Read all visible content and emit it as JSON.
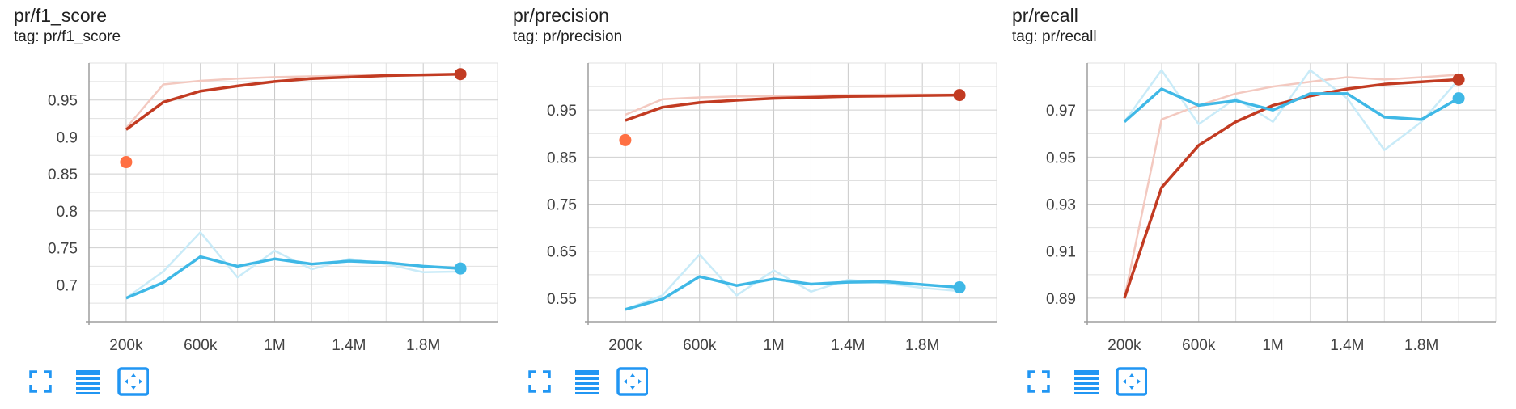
{
  "cards": [
    {
      "title": "pr/f1_score",
      "tag": "tag: pr/f1_score",
      "toolbar": {
        "icons": [
          "fullscreen-icon",
          "data-table-icon",
          "fit-domain-icon"
        ]
      },
      "chart_data": {
        "type": "line",
        "xlim": [
          0,
          2200000
        ],
        "ylim": [
          0.65,
          1.0
        ],
        "x_ticks": [
          200000,
          600000,
          1000000,
          1400000,
          1800000
        ],
        "x_tick_labels": [
          "200k",
          "600k",
          "1M",
          "1.4M",
          "1.8M"
        ],
        "y_ticks": [
          0.7,
          0.75,
          0.8,
          0.85,
          0.9,
          0.95
        ],
        "y_tick_labels": [
          "0.7",
          "0.75",
          "0.8",
          "0.85",
          "0.9",
          "0.95"
        ],
        "grid": true,
        "series": [
          {
            "color": "#c23b22",
            "raw_color": "#f3c9c0",
            "x": [
              200000,
              400000,
              600000,
              800000,
              1000000,
              1200000,
              1400000,
              1600000,
              1800000,
              2000000
            ],
            "raw": [
              0.912,
              0.971,
              0.976,
              0.979,
              0.981,
              0.982,
              0.983,
              0.984,
              0.984,
              0.985
            ],
            "smoothed": [
              0.91,
              0.947,
              0.962,
              0.969,
              0.975,
              0.979,
              0.981,
              0.983,
              0.984,
              0.985
            ]
          },
          {
            "color": "#3fb8e6",
            "raw_color": "#c9ebf8",
            "x": [
              200000,
              400000,
              600000,
              800000,
              1000000,
              1200000,
              1400000,
              1600000,
              1800000,
              2000000
            ],
            "raw": [
              0.682,
              0.718,
              0.771,
              0.71,
              0.746,
              0.721,
              0.735,
              0.728,
              0.717,
              0.718
            ],
            "smoothed": [
              0.682,
              0.703,
              0.738,
              0.725,
              0.735,
              0.728,
              0.732,
              0.73,
              0.725,
              0.722
            ]
          }
        ],
        "markers": [
          {
            "x": 200000,
            "y": 0.866,
            "color": "#ff7043"
          },
          {
            "x": 2000000,
            "y": 0.985,
            "color": "#c23b22"
          },
          {
            "x": 2000000,
            "y": 0.722,
            "color": "#3fb8e6"
          }
        ]
      }
    },
    {
      "title": "pr/precision",
      "tag": "tag: pr/precision",
      "toolbar": {
        "icons": [
          "fullscreen-icon",
          "data-table-icon",
          "fit-domain-icon"
        ]
      },
      "chart_data": {
        "type": "line",
        "xlim": [
          0,
          2200000
        ],
        "ylim": [
          0.5,
          1.05
        ],
        "x_ticks": [
          200000,
          600000,
          1000000,
          1400000,
          1800000
        ],
        "x_tick_labels": [
          "200k",
          "600k",
          "1M",
          "1.4M",
          "1.8M"
        ],
        "y_ticks": [
          0.55,
          0.65,
          0.75,
          0.85,
          0.95
        ],
        "y_tick_labels": [
          "0.55",
          "0.65",
          "0.75",
          "0.85",
          "0.95"
        ],
        "grid": true,
        "series": [
          {
            "color": "#c23b22",
            "raw_color": "#f3c9c0",
            "x": [
              200000,
              400000,
              600000,
              800000,
              1000000,
              1200000,
              1400000,
              1600000,
              1800000,
              2000000
            ],
            "raw": [
              0.94,
              0.973,
              0.977,
              0.979,
              0.98,
              0.981,
              0.982,
              0.983,
              0.983,
              0.983
            ],
            "smoothed": [
              0.928,
              0.956,
              0.966,
              0.971,
              0.975,
              0.977,
              0.979,
              0.98,
              0.981,
              0.982
            ]
          },
          {
            "color": "#3fb8e6",
            "raw_color": "#c9ebf8",
            "x": [
              200000,
              400000,
              600000,
              800000,
              1000000,
              1200000,
              1400000,
              1600000,
              1800000,
              2000000
            ],
            "raw": [
              0.526,
              0.556,
              0.643,
              0.556,
              0.609,
              0.564,
              0.589,
              0.582,
              0.572,
              0.565
            ],
            "smoothed": [
              0.526,
              0.548,
              0.596,
              0.577,
              0.591,
              0.58,
              0.584,
              0.585,
              0.579,
              0.573
            ]
          }
        ],
        "markers": [
          {
            "x": 200000,
            "y": 0.886,
            "color": "#ff7043"
          },
          {
            "x": 2000000,
            "y": 0.982,
            "color": "#c23b22"
          },
          {
            "x": 2000000,
            "y": 0.573,
            "color": "#3fb8e6"
          }
        ]
      }
    },
    {
      "title": "pr/recall",
      "tag": "tag: pr/recall",
      "toolbar": {
        "icons": [
          "fullscreen-icon",
          "data-table-icon",
          "fit-domain-icon"
        ]
      },
      "chart_data": {
        "type": "line",
        "xlim": [
          0,
          2200000
        ],
        "ylim": [
          0.88,
          0.99
        ],
        "x_ticks": [
          200000,
          600000,
          1000000,
          1400000,
          1800000
        ],
        "x_tick_labels": [
          "200k",
          "600k",
          "1M",
          "1.4M",
          "1.8M"
        ],
        "y_ticks": [
          0.89,
          0.91,
          0.93,
          0.95,
          0.97
        ],
        "y_tick_labels": [
          "0.89",
          "0.91",
          "0.93",
          "0.95",
          "0.97"
        ],
        "grid": true,
        "series": [
          {
            "color": "#c23b22",
            "raw_color": "#f3c9c0",
            "x": [
              200000,
              400000,
              600000,
              800000,
              1000000,
              1200000,
              1400000,
              1600000,
              1800000,
              2000000
            ],
            "raw": [
              0.89,
              0.966,
              0.972,
              0.977,
              0.98,
              0.982,
              0.984,
              0.983,
              0.984,
              0.985
            ],
            "smoothed": [
              0.89,
              0.937,
              0.955,
              0.965,
              0.972,
              0.976,
              0.979,
              0.981,
              0.982,
              0.983
            ]
          },
          {
            "color": "#3fb8e6",
            "raw_color": "#c9ebf8",
            "x": [
              200000,
              400000,
              600000,
              800000,
              1000000,
              1200000,
              1400000,
              1600000,
              1800000,
              2000000
            ],
            "raw": [
              0.965,
              0.987,
              0.964,
              0.975,
              0.965,
              0.987,
              0.975,
              0.953,
              0.965,
              0.983
            ],
            "smoothed": [
              0.965,
              0.979,
              0.972,
              0.974,
              0.97,
              0.977,
              0.977,
              0.967,
              0.966,
              0.975
            ]
          }
        ],
        "markers": [
          {
            "x": 2000000,
            "y": 0.983,
            "color": "#c23b22"
          },
          {
            "x": 2000000,
            "y": 0.975,
            "color": "#3fb8e6"
          }
        ]
      }
    }
  ]
}
